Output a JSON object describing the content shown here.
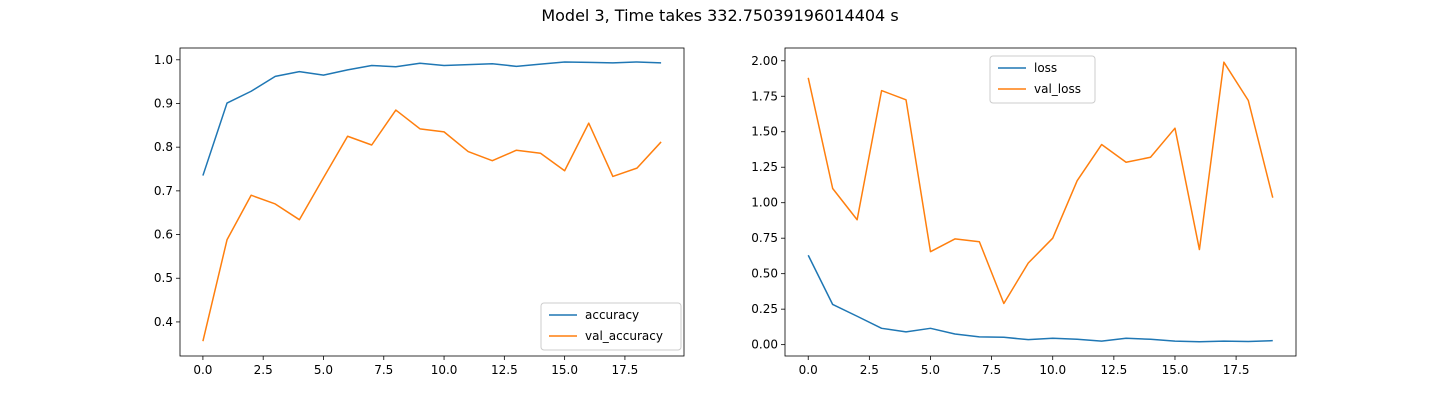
{
  "suptitle": "Model 3, Time takes 332.75039196014404 s",
  "colors": {
    "series1": "#1f77b4",
    "series2": "#ff7f0e",
    "axis": "#000000",
    "legend_border": "#cccccc"
  },
  "chart_data": [
    {
      "type": "line",
      "title": "",
      "xlabel": "",
      "ylabel": "",
      "x": [
        0,
        1,
        2,
        3,
        4,
        5,
        6,
        7,
        8,
        9,
        10,
        11,
        12,
        13,
        14,
        15,
        16,
        17,
        18,
        19
      ],
      "xlim": [
        -0.95,
        19.95
      ],
      "ylim": [
        0.322,
        1.027
      ],
      "xticks": [
        0.0,
        2.5,
        5.0,
        7.5,
        10.0,
        12.5,
        15.0,
        17.5
      ],
      "xtick_labels": [
        "0.0",
        "2.5",
        "5.0",
        "7.5",
        "10.0",
        "12.5",
        "15.0",
        "17.5"
      ],
      "yticks": [
        0.4,
        0.5,
        0.6,
        0.7,
        0.8,
        0.9,
        1.0
      ],
      "ytick_labels": [
        "0.4",
        "0.5",
        "0.6",
        "0.7",
        "0.8",
        "0.9",
        "1.0"
      ],
      "legend_position": "lower right",
      "series": [
        {
          "name": "accuracy",
          "values": [
            0.735,
            0.901,
            0.928,
            0.962,
            0.973,
            0.965,
            0.977,
            0.987,
            0.984,
            0.992,
            0.987,
            0.989,
            0.991,
            0.985,
            0.99,
            0.995,
            0.994,
            0.993,
            0.995,
            0.993
          ]
        },
        {
          "name": "val_accuracy",
          "values": [
            0.356,
            0.588,
            0.69,
            0.67,
            0.634,
            0.73,
            0.825,
            0.805,
            0.885,
            0.842,
            0.835,
            0.79,
            0.769,
            0.793,
            0.786,
            0.746,
            0.855,
            0.733,
            0.752,
            0.812
          ]
        }
      ]
    },
    {
      "type": "line",
      "title": "",
      "xlabel": "",
      "ylabel": "",
      "x": [
        0,
        1,
        2,
        3,
        4,
        5,
        6,
        7,
        8,
        9,
        10,
        11,
        12,
        13,
        14,
        15,
        16,
        17,
        18,
        19
      ],
      "xlim": [
        -0.95,
        19.95
      ],
      "ylim": [
        -0.08,
        2.09
      ],
      "xticks": [
        0.0,
        2.5,
        5.0,
        7.5,
        10.0,
        12.5,
        15.0,
        17.5
      ],
      "xtick_labels": [
        "0.0",
        "2.5",
        "5.0",
        "7.5",
        "10.0",
        "12.5",
        "15.0",
        "17.5"
      ],
      "yticks": [
        0.0,
        0.25,
        0.5,
        0.75,
        1.0,
        1.25,
        1.5,
        1.75,
        2.0
      ],
      "ytick_labels": [
        "0.00",
        "0.25",
        "0.50",
        "0.75",
        "1.00",
        "1.25",
        "1.50",
        "1.75",
        "2.00"
      ],
      "legend_position": "upper center",
      "series": [
        {
          "name": "loss",
          "values": [
            0.63,
            0.283,
            0.2,
            0.115,
            0.09,
            0.115,
            0.075,
            0.055,
            0.052,
            0.035,
            0.045,
            0.038,
            0.025,
            0.045,
            0.038,
            0.025,
            0.02,
            0.025,
            0.022,
            0.028
          ]
        },
        {
          "name": "val_loss",
          "values": [
            1.88,
            1.1,
            0.88,
            1.79,
            1.725,
            0.655,
            0.745,
            0.725,
            0.29,
            0.575,
            0.75,
            1.155,
            1.41,
            1.285,
            1.32,
            1.525,
            0.67,
            1.99,
            1.72,
            1.035
          ]
        }
      ]
    }
  ]
}
